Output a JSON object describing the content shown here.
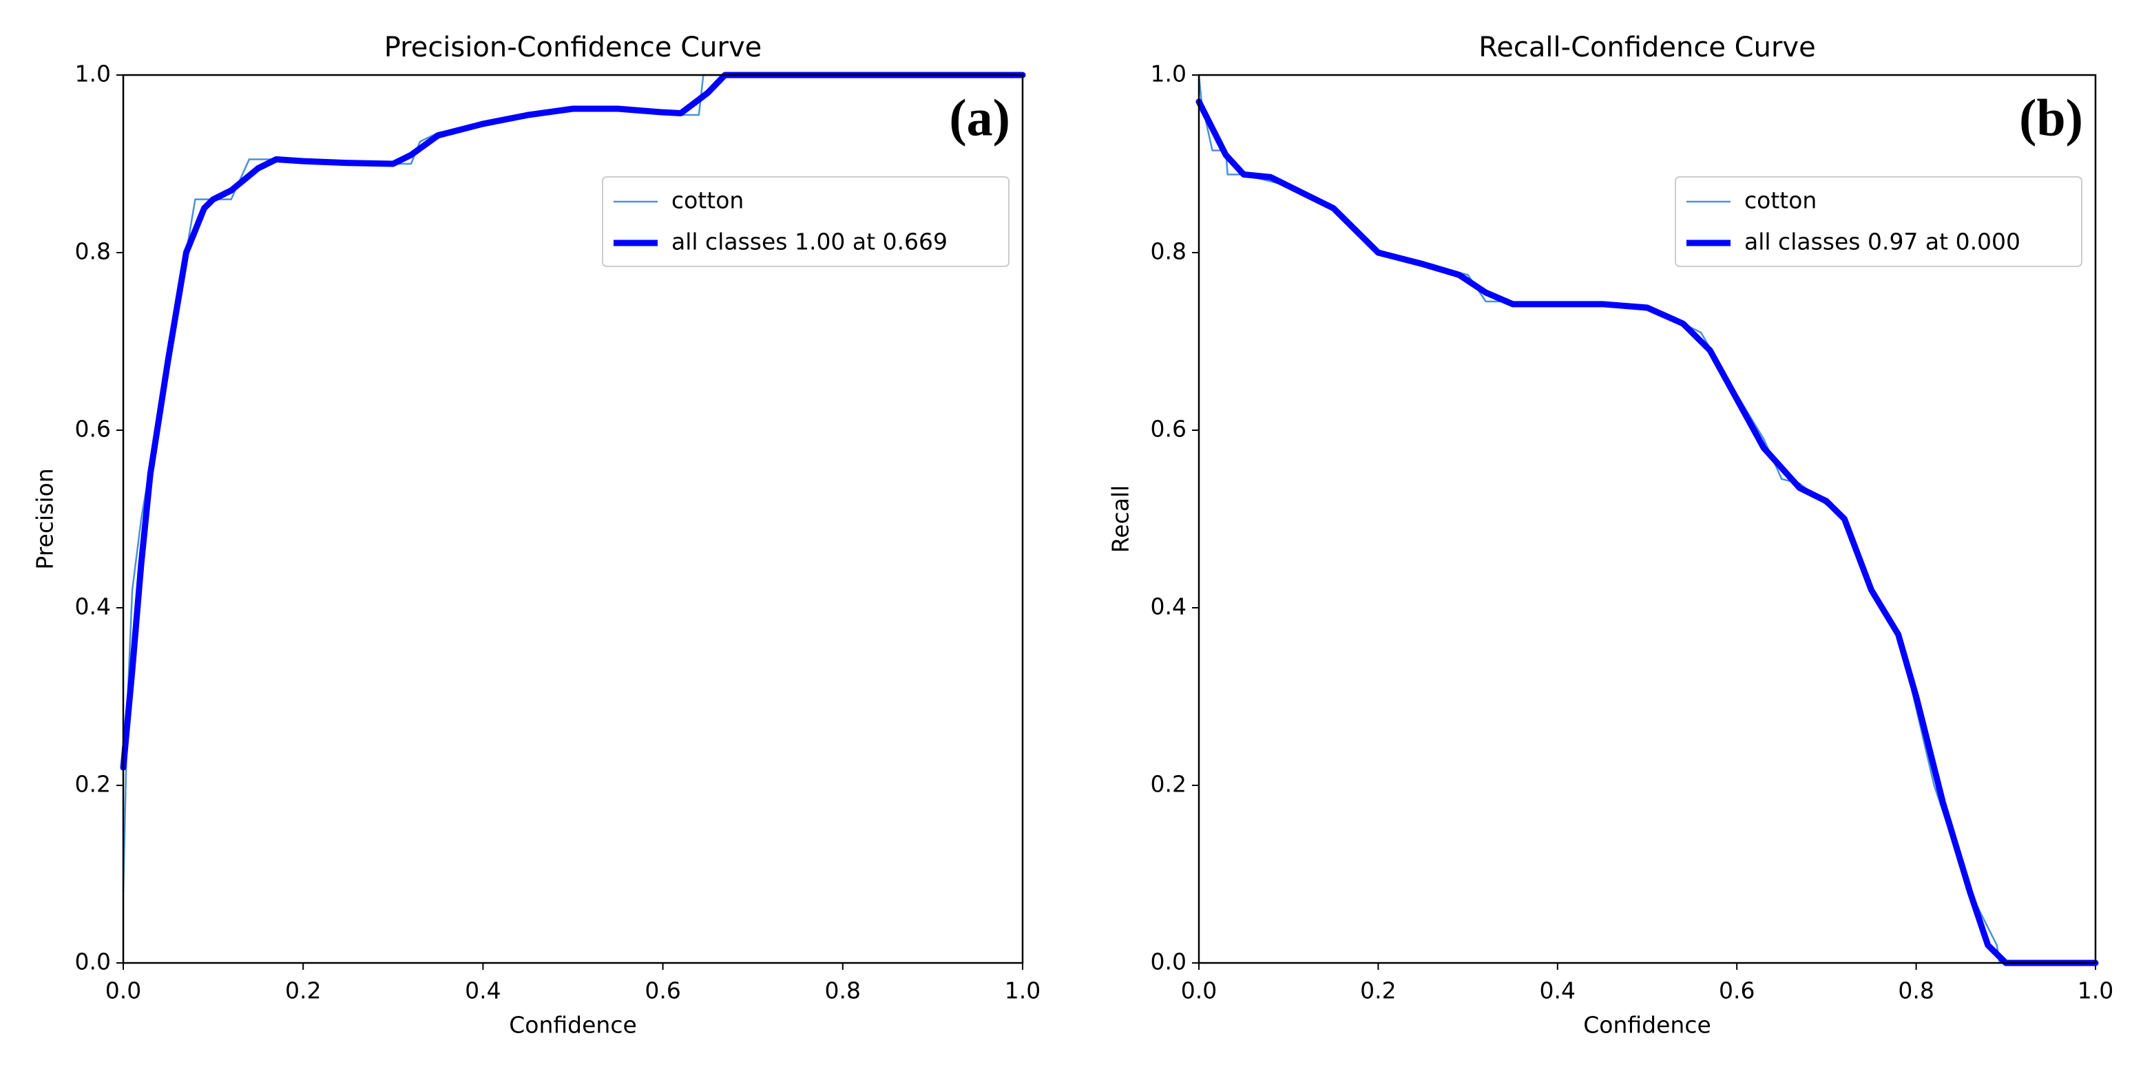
{
  "chart_data": [
    {
      "type": "line",
      "title": "Precision-Confidence Curve",
      "panel_label": "(a)",
      "xlabel": "Confidence",
      "ylabel": "Precision",
      "xlim": [
        0,
        1
      ],
      "ylim": [
        0,
        1
      ],
      "xticks": [
        {
          "value": 0,
          "label": "0.0"
        },
        0.2,
        0.4,
        0.6,
        0.8,
        {
          "value": 1,
          "label": "1.0"
        }
      ],
      "yticks": [
        {
          "value": 0,
          "label": "0.0"
        },
        0.2,
        0.4,
        0.6,
        0.8,
        {
          "value": 1,
          "label": "1.0"
        }
      ],
      "legend": "upper right",
      "series": [
        {
          "name": "cotton",
          "color": "#4a90d9",
          "x": [
            0,
            0.005,
            0.01,
            0.02,
            0.03,
            0.05,
            0.07,
            0.08,
            0.12,
            0.14,
            0.17,
            0.3,
            0.32,
            0.33,
            0.35,
            0.5,
            0.6,
            0.62,
            0.64,
            0.645,
            0.7,
            1.0
          ],
          "values": [
            0.08,
            0.3,
            0.42,
            0.5,
            0.56,
            0.68,
            0.8,
            0.86,
            0.86,
            0.905,
            0.905,
            0.9,
            0.9,
            0.925,
            0.935,
            0.962,
            0.958,
            0.955,
            0.955,
            1.0,
            1.0,
            1.0
          ]
        },
        {
          "name": "all classes 1.00 at 0.669",
          "color": "#0000ff",
          "x": [
            0,
            0.01,
            0.02,
            0.03,
            0.05,
            0.07,
            0.09,
            0.1,
            0.12,
            0.15,
            0.17,
            0.2,
            0.25,
            0.3,
            0.32,
            0.35,
            0.4,
            0.45,
            0.5,
            0.55,
            0.6,
            0.62,
            0.65,
            0.669,
            0.7,
            0.8,
            0.9,
            1.0
          ],
          "values": [
            0.22,
            0.33,
            0.45,
            0.55,
            0.68,
            0.8,
            0.85,
            0.86,
            0.87,
            0.895,
            0.905,
            0.903,
            0.901,
            0.9,
            0.91,
            0.932,
            0.945,
            0.955,
            0.962,
            0.962,
            0.958,
            0.957,
            0.98,
            1.0,
            1.0,
            1.0,
            1.0,
            1.0
          ]
        }
      ]
    },
    {
      "type": "line",
      "title": "Recall-Confidence Curve",
      "panel_label": "(b)",
      "xlabel": "Confidence",
      "ylabel": "Recall",
      "xlim": [
        0,
        1
      ],
      "ylim": [
        0,
        1
      ],
      "xticks": [
        {
          "value": 0,
          "label": "0.0"
        },
        0.2,
        0.4,
        0.6,
        0.8,
        {
          "value": 1,
          "label": "1.0"
        }
      ],
      "yticks": [
        {
          "value": 0,
          "label": "0.0"
        },
        0.2,
        0.4,
        0.6,
        0.8,
        {
          "value": 1,
          "label": "1.0"
        }
      ],
      "legend": "upper right",
      "series": [
        {
          "name": "cotton",
          "color": "#4a90d9",
          "x": [
            0,
            0.003,
            0.015,
            0.03,
            0.032,
            0.05,
            0.1,
            0.15,
            0.2,
            0.3,
            0.32,
            0.34,
            0.4,
            0.5,
            0.56,
            0.6,
            0.63,
            0.65,
            0.67,
            0.72,
            0.76,
            0.78,
            0.79,
            0.82,
            0.86,
            0.89,
            0.893,
            1.0
          ],
          "values": [
            1.0,
            0.97,
            0.915,
            0.915,
            0.888,
            0.888,
            0.875,
            0.85,
            0.8,
            0.775,
            0.745,
            0.745,
            0.742,
            0.74,
            0.71,
            0.64,
            0.59,
            0.545,
            0.54,
            0.5,
            0.4,
            0.37,
            0.33,
            0.2,
            0.08,
            0.02,
            0.0,
            0.0
          ]
        },
        {
          "name": "all classes 0.97 at 0.000",
          "color": "#0000ff",
          "x": [
            0,
            0.01,
            0.02,
            0.03,
            0.05,
            0.08,
            0.1,
            0.15,
            0.2,
            0.25,
            0.29,
            0.32,
            0.35,
            0.4,
            0.45,
            0.5,
            0.54,
            0.57,
            0.6,
            0.63,
            0.67,
            0.7,
            0.72,
            0.75,
            0.78,
            0.8,
            0.83,
            0.86,
            0.88,
            0.9,
            0.92,
            1.0
          ],
          "values": [
            0.97,
            0.95,
            0.93,
            0.91,
            0.888,
            0.885,
            0.875,
            0.85,
            0.8,
            0.787,
            0.775,
            0.755,
            0.742,
            0.742,
            0.742,
            0.738,
            0.72,
            0.69,
            0.635,
            0.58,
            0.535,
            0.52,
            0.5,
            0.42,
            0.37,
            0.3,
            0.18,
            0.08,
            0.02,
            0.0,
            0.0,
            0.0
          ]
        }
      ]
    }
  ]
}
